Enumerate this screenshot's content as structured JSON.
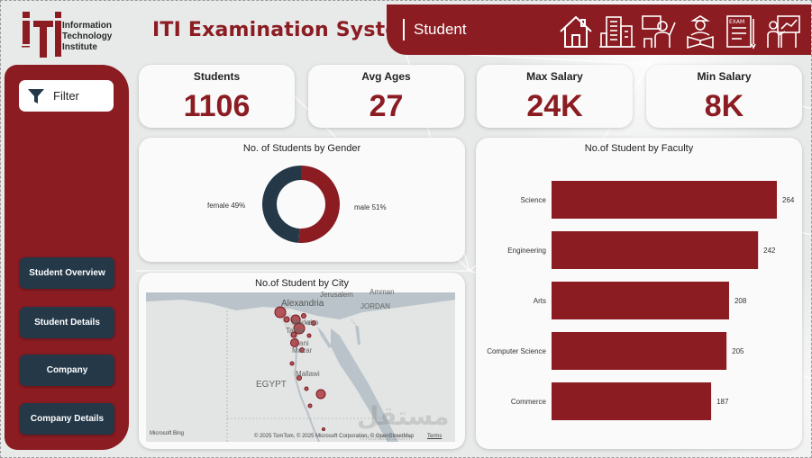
{
  "logo": {
    "line1": "Information",
    "line2": "Technology",
    "line3": "Institute"
  },
  "app_title": "ITI Examination System",
  "header": {
    "title": "Student",
    "nav_icons": [
      "home-icon",
      "company-building-icon",
      "instructor-icon",
      "student-reading-icon",
      "exam-icon",
      "teacher-board-icon"
    ],
    "exam_icon_text": "EXAM"
  },
  "sidebar": {
    "filter_label": "Filter",
    "buttons": [
      "Student Overview",
      "Student Details",
      "Company",
      "Company Details"
    ]
  },
  "kpis": [
    {
      "label": "Students",
      "value": "1106"
    },
    {
      "label": "Avg Ages",
      "value": "27"
    },
    {
      "label": "Max Salary",
      "value": "24K"
    },
    {
      "label": "Min Salary",
      "value": "8K"
    }
  ],
  "gender_chart": {
    "title": "No. of Students by Gender",
    "female_label": "female 49%",
    "male_label": "male 51%"
  },
  "city_map": {
    "title": "No.of Student by City",
    "labels": {
      "alexandria": "Alexandria",
      "jerusalem": "Jerusalem",
      "amman": "Amman",
      "markaz": "Marka",
      "cairo": "airo",
      "tanta": "Tanta",
      "mani": "ani",
      "mazar": "Mazar",
      "mallawi": "Mallawi",
      "egypt": "EGYPT",
      "jordan": "JORDAN"
    },
    "credit_brand": "Microsoft Bing",
    "credit_text": "© 2025 TomTom, © 2025 Microsoft Corporation, © OpenStreetMap",
    "terms": "Terms"
  },
  "faculty_chart": {
    "title": "No.of Student by Faculty"
  },
  "watermark": {
    "main": "مستقل",
    "sub": "mostaql.com"
  },
  "colors": {
    "brand_red": "#8b1c22",
    "navy": "#243848",
    "donut_navy": "#243848"
  },
  "chart_data": [
    {
      "type": "pie",
      "title": "No. of Students by Gender",
      "categories": [
        "female",
        "male"
      ],
      "values": [
        49,
        51
      ],
      "unit": "%",
      "colors": [
        "#243848",
        "#8b1c22"
      ],
      "donut": true
    },
    {
      "type": "bar",
      "orientation": "horizontal",
      "title": "No.of Student by Faculty",
      "categories": [
        "Science",
        "Engineering",
        "Arts",
        "Computer Science",
        "Commerce"
      ],
      "values": [
        264,
        242,
        208,
        205,
        187
      ],
      "xlim": [
        0,
        264
      ],
      "color": "#8b1c22",
      "grid": false
    }
  ]
}
